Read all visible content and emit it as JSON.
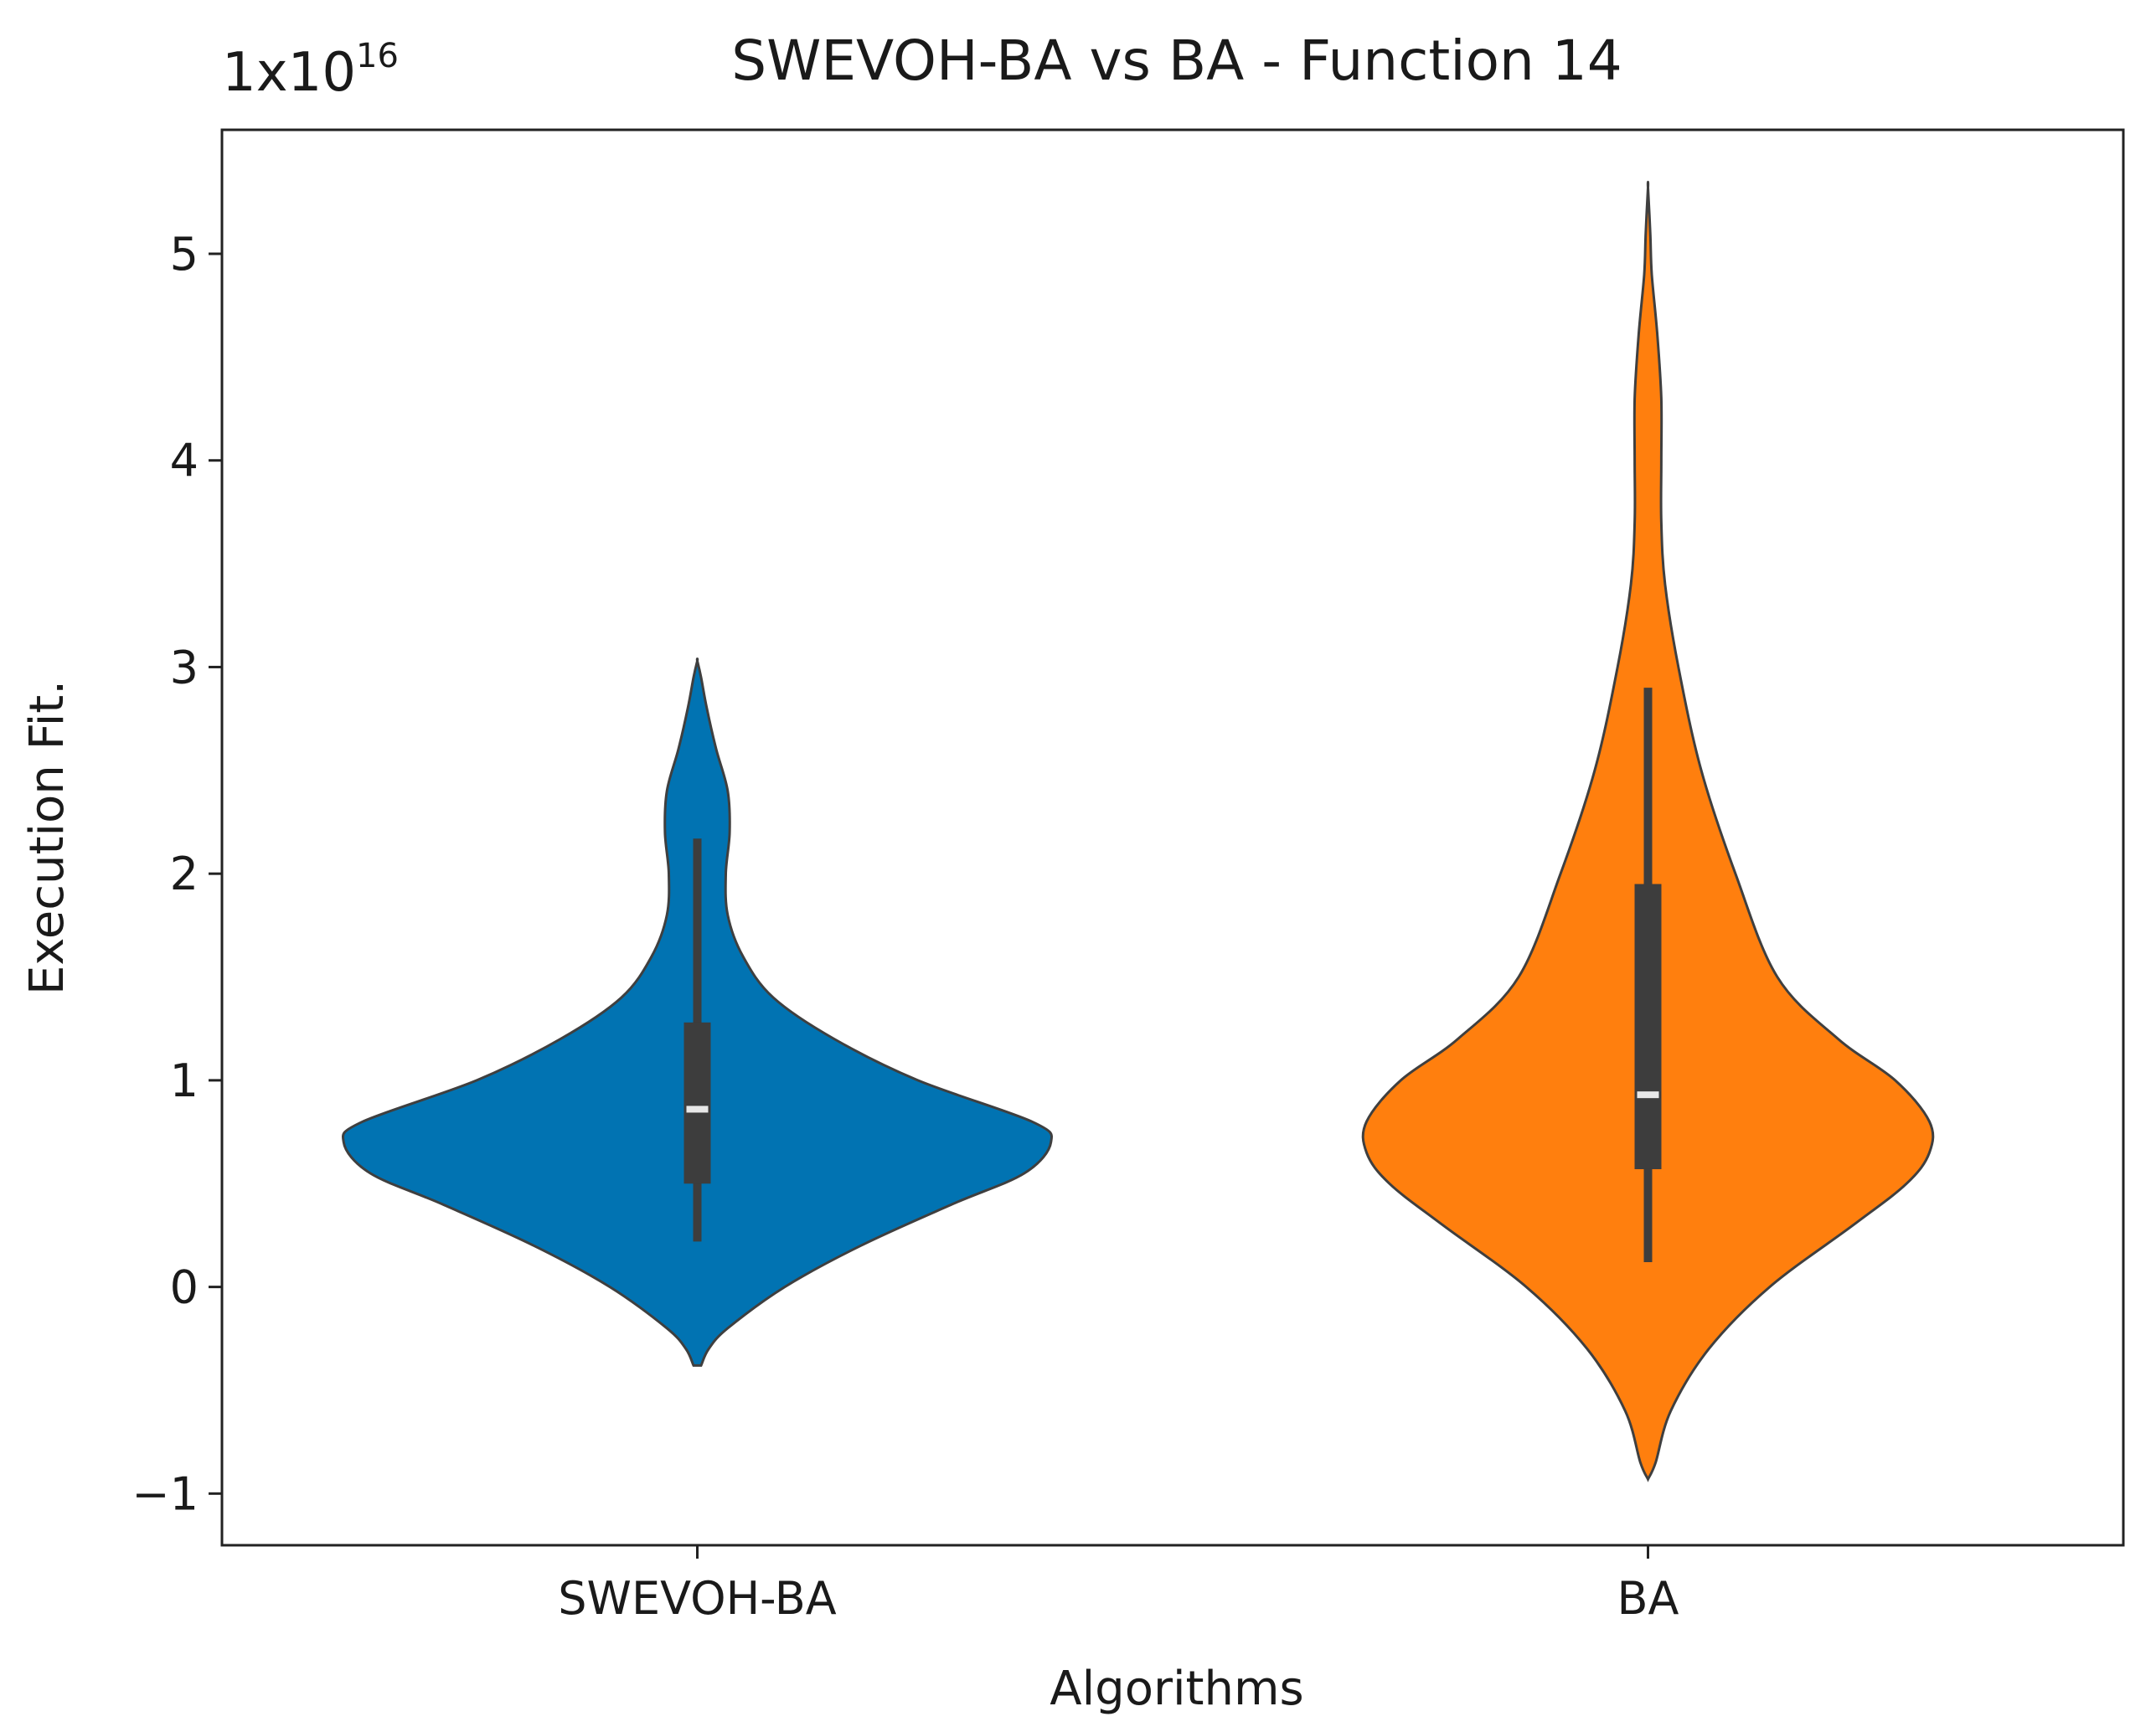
{
  "chart_data": {
    "type": "violin",
    "title": "SWEVOH-BA vs BA - Function 14",
    "xlabel": "Algorithms",
    "ylabel": "Execution Fit.",
    "scale_label": {
      "base": "1x10",
      "exponent": "16"
    },
    "ylim": [
      -1.25,
      5.6
    ],
    "yticks": [
      -1,
      0,
      1,
      2,
      3,
      4,
      5
    ],
    "ytick_labels": [
      "−1",
      "0",
      "1",
      "2",
      "3",
      "4",
      "5"
    ],
    "categories": [
      "SWEVOH-BA",
      "BA"
    ],
    "series": [
      {
        "name": "SWEVOH-BA",
        "color": "#0173b2",
        "min": 0.22,
        "q1": 0.5,
        "median": 0.86,
        "q3": 1.28,
        "max": 2.17,
        "density": [
          [
            -0.38,
            0.01
          ],
          [
            -0.3,
            0.03
          ],
          [
            -0.2,
            0.08
          ],
          [
            0.0,
            0.23
          ],
          [
            0.2,
            0.43
          ],
          [
            0.4,
            0.67
          ],
          [
            0.55,
            0.86
          ],
          [
            0.7,
            0.93
          ],
          [
            0.8,
            0.88
          ],
          [
            1.0,
            0.58
          ],
          [
            1.2,
            0.36
          ],
          [
            1.4,
            0.2
          ],
          [
            1.6,
            0.12
          ],
          [
            1.8,
            0.08
          ],
          [
            2.0,
            0.075
          ],
          [
            2.2,
            0.085
          ],
          [
            2.4,
            0.08
          ],
          [
            2.6,
            0.05
          ],
          [
            2.8,
            0.025
          ],
          [
            2.95,
            0.01
          ],
          [
            3.03,
            0.0
          ]
        ]
      },
      {
        "name": "BA",
        "color": "#ff7f0e",
        "min": 0.12,
        "q1": 0.57,
        "median": 0.93,
        "q3": 1.95,
        "max": 2.9,
        "density": [
          [
            -0.93,
            0.0
          ],
          [
            -0.85,
            0.02
          ],
          [
            -0.6,
            0.06
          ],
          [
            -0.3,
            0.16
          ],
          [
            0.0,
            0.32
          ],
          [
            0.3,
            0.54
          ],
          [
            0.5,
            0.68
          ],
          [
            0.65,
            0.74
          ],
          [
            0.8,
            0.74
          ],
          [
            1.0,
            0.65
          ],
          [
            1.2,
            0.5
          ],
          [
            1.5,
            0.34
          ],
          [
            2.0,
            0.23
          ],
          [
            2.5,
            0.14
          ],
          [
            3.0,
            0.08
          ],
          [
            3.4,
            0.045
          ],
          [
            3.7,
            0.035
          ],
          [
            4.0,
            0.035
          ],
          [
            4.3,
            0.035
          ],
          [
            4.6,
            0.025
          ],
          [
            4.9,
            0.01
          ],
          [
            5.1,
            0.006
          ],
          [
            5.32,
            0.0
          ]
        ]
      }
    ]
  }
}
